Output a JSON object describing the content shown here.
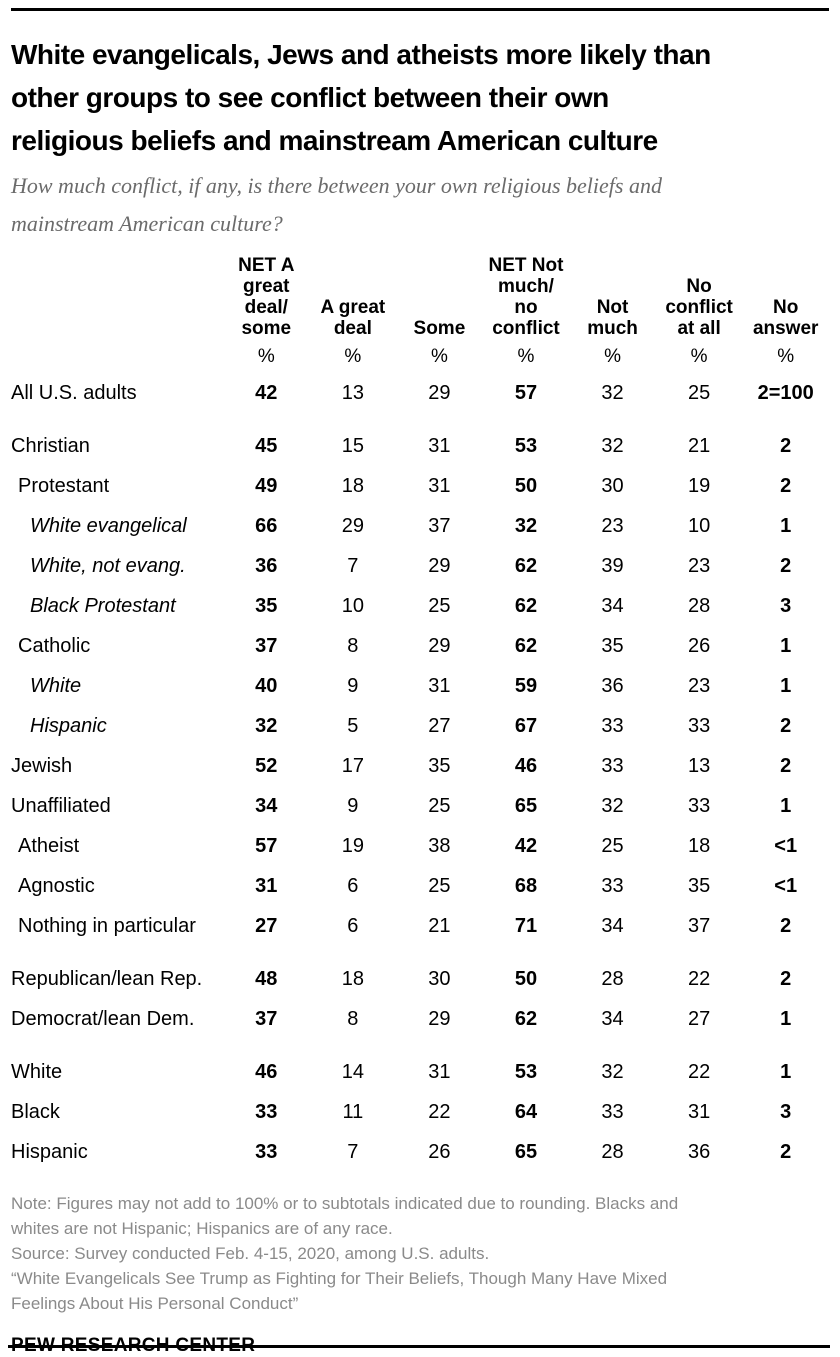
{
  "header": {
    "title": "White evangelicals, Jews and atheists more likely than\nother groups to see conflict between their own\nreligious beliefs and mainstream American culture",
    "question": "How much conflict, if any, is there between your own religious beliefs and\nmainstream American culture?"
  },
  "chart_data": {
    "type": "table",
    "title": "White evangelicals, Jews and atheists more likely than other groups to see conflict between their own religious beliefs and mainstream American culture",
    "question": "How much conflict, if any, is there between your own religious beliefs and mainstream American culture?",
    "value_unit": "%",
    "percent_symbol": "%",
    "column_headers": [
      "NET A\ngreat\ndeal/\nsome",
      "A great\ndeal",
      "Some",
      "NET Not\nmuch/\nno\nconflict",
      "Not\nmuch",
      "No\nconflict\nat all",
      "No\nanswer"
    ],
    "bold_columns": [
      0,
      3,
      6
    ],
    "rows": [
      {
        "label": "All U.S. adults",
        "indent": 0,
        "italic": false,
        "gap_before": false,
        "values": [
          "42",
          "13",
          "29",
          "57",
          "32",
          "25",
          "2=100"
        ]
      },
      {
        "label": "Christian",
        "indent": 0,
        "italic": false,
        "gap_before": true,
        "values": [
          "45",
          "15",
          "31",
          "53",
          "32",
          "21",
          "2"
        ]
      },
      {
        "label": "Protestant",
        "indent": 1,
        "italic": false,
        "gap_before": false,
        "values": [
          "49",
          "18",
          "31",
          "50",
          "30",
          "19",
          "2"
        ]
      },
      {
        "label": "White evangelical",
        "indent": 2,
        "italic": true,
        "gap_before": false,
        "values": [
          "66",
          "29",
          "37",
          "32",
          "23",
          "10",
          "1"
        ]
      },
      {
        "label": "White, not evang.",
        "indent": 2,
        "italic": true,
        "gap_before": false,
        "values": [
          "36",
          "7",
          "29",
          "62",
          "39",
          "23",
          "2"
        ]
      },
      {
        "label": "Black Protestant",
        "indent": 2,
        "italic": true,
        "gap_before": false,
        "values": [
          "35",
          "10",
          "25",
          "62",
          "34",
          "28",
          "3"
        ]
      },
      {
        "label": "Catholic",
        "indent": 1,
        "italic": false,
        "gap_before": false,
        "values": [
          "37",
          "8",
          "29",
          "62",
          "35",
          "26",
          "1"
        ]
      },
      {
        "label": "White",
        "indent": 2,
        "italic": true,
        "gap_before": false,
        "values": [
          "40",
          "9",
          "31",
          "59",
          "36",
          "23",
          "1"
        ]
      },
      {
        "label": "Hispanic",
        "indent": 2,
        "italic": true,
        "gap_before": false,
        "values": [
          "32",
          "5",
          "27",
          "67",
          "33",
          "33",
          "2"
        ]
      },
      {
        "label": "Jewish",
        "indent": 0,
        "italic": false,
        "gap_before": false,
        "values": [
          "52",
          "17",
          "35",
          "46",
          "33",
          "13",
          "2"
        ]
      },
      {
        "label": "Unaffiliated",
        "indent": 0,
        "italic": false,
        "gap_before": false,
        "values": [
          "34",
          "9",
          "25",
          "65",
          "32",
          "33",
          "1"
        ]
      },
      {
        "label": "Atheist",
        "indent": 1,
        "italic": false,
        "gap_before": false,
        "values": [
          "57",
          "19",
          "38",
          "42",
          "25",
          "18",
          "<1"
        ]
      },
      {
        "label": "Agnostic",
        "indent": 1,
        "italic": false,
        "gap_before": false,
        "values": [
          "31",
          "6",
          "25",
          "68",
          "33",
          "35",
          "<1"
        ]
      },
      {
        "label": "Nothing in particular",
        "indent": 1,
        "italic": false,
        "gap_before": false,
        "values": [
          "27",
          "6",
          "21",
          "71",
          "34",
          "37",
          "2"
        ]
      },
      {
        "label": "Republican/lean Rep.",
        "indent": 0,
        "italic": false,
        "gap_before": true,
        "values": [
          "48",
          "18",
          "30",
          "50",
          "28",
          "22",
          "2"
        ]
      },
      {
        "label": "Democrat/lean Dem.",
        "indent": 0,
        "italic": false,
        "gap_before": false,
        "values": [
          "37",
          "8",
          "29",
          "62",
          "34",
          "27",
          "1"
        ]
      },
      {
        "label": "White",
        "indent": 0,
        "italic": false,
        "gap_before": true,
        "values": [
          "46",
          "14",
          "31",
          "53",
          "32",
          "22",
          "1"
        ]
      },
      {
        "label": "Black",
        "indent": 0,
        "italic": false,
        "gap_before": false,
        "values": [
          "33",
          "11",
          "22",
          "64",
          "33",
          "31",
          "3"
        ]
      },
      {
        "label": "Hispanic",
        "indent": 0,
        "italic": false,
        "gap_before": false,
        "values": [
          "33",
          "7",
          "26",
          "65",
          "28",
          "36",
          "2"
        ]
      }
    ]
  },
  "footer": {
    "note": "Note: Figures may not add to 100% or to subtotals indicated due to rounding. Blacks and whites are not Hispanic; Hispanics are of any race.",
    "source": "Source: Survey conducted Feb. 4-15, 2020, among U.S. adults.",
    "report": "“White Evangelicals See Trump as Fighting for Their Beliefs, Though Many Have Mixed Feelings About His Personal Conduct”",
    "brand": "PEW RESEARCH CENTER"
  },
  "colors": {
    "text_black": "#000000",
    "subtitle_gray": "#6b6b6b",
    "note_gray": "#8a8a8a",
    "rule_black": "#000000"
  }
}
